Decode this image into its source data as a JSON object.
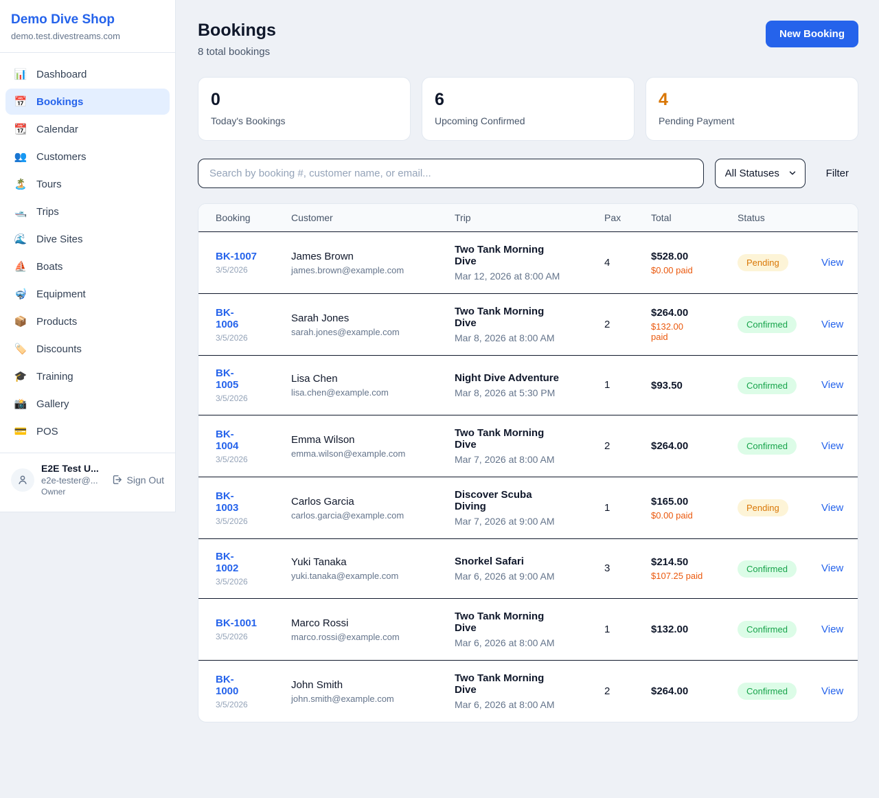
{
  "colors": {
    "accent": "#2563eb",
    "pending_text": "#d97706",
    "pending_bg": "#fdf4d7",
    "confirmed_text": "#16a34a",
    "confirmed_bg": "#dcfce7",
    "paid_orange": "#ea580c"
  },
  "sidebar": {
    "brand": "Demo Dive Shop",
    "domain": "demo.test.divestreams.com",
    "items": [
      {
        "label": "Dashboard",
        "icon": "📊",
        "icon_name": "bar-chart-icon",
        "active": false
      },
      {
        "label": "Bookings",
        "icon": "📅",
        "icon_name": "calendar-number-icon",
        "active": true
      },
      {
        "label": "Calendar",
        "icon": "📆",
        "icon_name": "tear-off-calendar-icon",
        "active": false
      },
      {
        "label": "Customers",
        "icon": "👥",
        "icon_name": "people-icon",
        "active": false
      },
      {
        "label": "Tours",
        "icon": "🏝️",
        "icon_name": "island-icon",
        "active": false
      },
      {
        "label": "Trips",
        "icon": "🛥️",
        "icon_name": "motorboat-icon",
        "active": false
      },
      {
        "label": "Dive Sites",
        "icon": "🌊",
        "icon_name": "wave-icon",
        "active": false
      },
      {
        "label": "Boats",
        "icon": "⛵",
        "icon_name": "sailboat-icon",
        "active": false
      },
      {
        "label": "Equipment",
        "icon": "🤿",
        "icon_name": "diving-mask-icon",
        "active": false
      },
      {
        "label": "Products",
        "icon": "📦",
        "icon_name": "package-icon",
        "active": false
      },
      {
        "label": "Discounts",
        "icon": "🏷️",
        "icon_name": "tag-icon",
        "active": false
      },
      {
        "label": "Training",
        "icon": "🎓",
        "icon_name": "graduation-cap-icon",
        "active": false
      },
      {
        "label": "Gallery",
        "icon": "📸",
        "icon_name": "camera-icon",
        "active": false
      },
      {
        "label": "POS",
        "icon": "💳",
        "icon_name": "credit-card-icon",
        "active": false
      }
    ],
    "user": {
      "name": "E2E Test U...",
      "email": "e2e-tester@...",
      "role": "Owner",
      "sign_out_label": "Sign Out"
    }
  },
  "header": {
    "title": "Bookings",
    "subtitle": "8 total bookings",
    "new_booking_label": "New Booking"
  },
  "stats": [
    {
      "value": "0",
      "label": "Today's Bookings",
      "orange": false
    },
    {
      "value": "6",
      "label": "Upcoming Confirmed",
      "orange": false
    },
    {
      "value": "4",
      "label": "Pending Payment",
      "orange": true
    }
  ],
  "filters": {
    "search_placeholder": "Search by booking #, customer name, or email...",
    "status_selected": "All Statuses",
    "filter_label": "Filter"
  },
  "table": {
    "columns": [
      "Booking",
      "Customer",
      "Trip",
      "Pax",
      "Total",
      "Status",
      ""
    ],
    "rows": [
      {
        "id": "BK-1007",
        "date": "3/5/2026",
        "customer": "James Brown",
        "email": "james.brown@example.com",
        "trip": "Two Tank Morning\nDive",
        "when": "Mar 12, 2026 at 8:00 AM",
        "pax": "4",
        "total": "$528.00",
        "paid": "$0.00 paid",
        "status": "Pending",
        "action": "View"
      },
      {
        "id": "BK-\n1006",
        "date": "3/5/2026",
        "customer": "Sarah Jones",
        "email": "sarah.jones@example.com",
        "trip": "Two Tank Morning\nDive",
        "when": "Mar 8, 2026 at 8:00 AM",
        "pax": "2",
        "total": "$264.00",
        "paid": "$132.00\npaid",
        "status": "Confirmed",
        "action": "View"
      },
      {
        "id": "BK-\n1005",
        "date": "3/5/2026",
        "customer": "Lisa Chen",
        "email": "lisa.chen@example.com",
        "trip": "Night Dive Adventure",
        "when": "Mar 8, 2026 at 5:30 PM",
        "pax": "1",
        "total": "$93.50",
        "paid": "",
        "status": "Confirmed",
        "action": "View"
      },
      {
        "id": "BK-\n1004",
        "date": "3/5/2026",
        "customer": "Emma Wilson",
        "email": "emma.wilson@example.com",
        "trip": "Two Tank Morning\nDive",
        "when": "Mar 7, 2026 at 8:00 AM",
        "pax": "2",
        "total": "$264.00",
        "paid": "",
        "status": "Confirmed",
        "action": "View"
      },
      {
        "id": "BK-\n1003",
        "date": "3/5/2026",
        "customer": "Carlos Garcia",
        "email": "carlos.garcia@example.com",
        "trip": "Discover Scuba\nDiving",
        "when": "Mar 7, 2026 at 9:00 AM",
        "pax": "1",
        "total": "$165.00",
        "paid": "$0.00 paid",
        "status": "Pending",
        "action": "View"
      },
      {
        "id": "BK-\n1002",
        "date": "3/5/2026",
        "customer": "Yuki Tanaka",
        "email": "yuki.tanaka@example.com",
        "trip": "Snorkel Safari",
        "when": "Mar 6, 2026 at 9:00 AM",
        "pax": "3",
        "total": "$214.50",
        "paid": "$107.25 paid",
        "status": "Confirmed",
        "action": "View"
      },
      {
        "id": "BK-1001",
        "date": "3/5/2026",
        "customer": "Marco Rossi",
        "email": "marco.rossi@example.com",
        "trip": "Two Tank Morning\nDive",
        "when": "Mar 6, 2026 at 8:00 AM",
        "pax": "1",
        "total": "$132.00",
        "paid": "",
        "status": "Confirmed",
        "action": "View"
      },
      {
        "id": "BK-\n1000",
        "date": "3/5/2026",
        "customer": "John Smith",
        "email": "john.smith@example.com",
        "trip": "Two Tank Morning\nDive",
        "when": "Mar 6, 2026 at 8:00 AM",
        "pax": "2",
        "total": "$264.00",
        "paid": "",
        "status": "Confirmed",
        "action": "View"
      }
    ]
  }
}
